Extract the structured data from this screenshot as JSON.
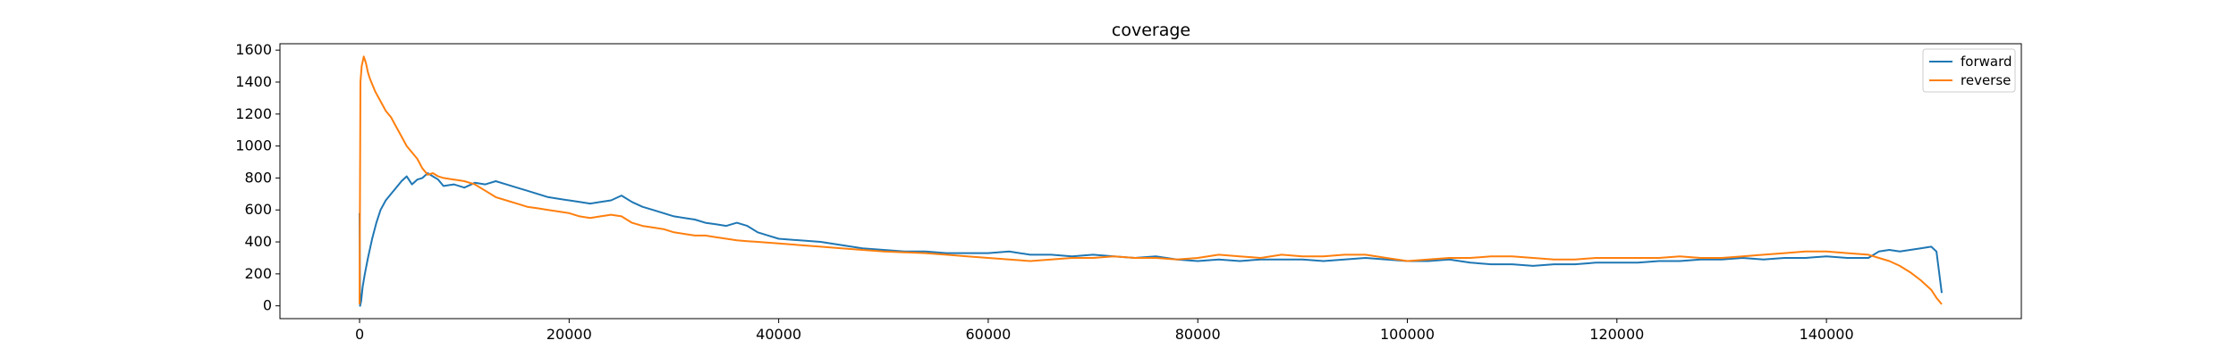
{
  "chart_data": {
    "type": "line",
    "title": "coverage",
    "xlabel": "",
    "ylabel": "",
    "xlim": [
      -7600,
      158600
    ],
    "ylim": [
      -80,
      1640
    ],
    "xticks": [
      0,
      20000,
      40000,
      60000,
      80000,
      100000,
      120000,
      140000
    ],
    "yticks": [
      0,
      200,
      400,
      600,
      800,
      1000,
      1200,
      1400,
      1600
    ],
    "grid": false,
    "legend_position": "top-right",
    "series": [
      {
        "name": "forward",
        "color": "#1f77b4",
        "x": [
          0,
          50,
          150,
          300,
          500,
          800,
          1200,
          1600,
          2000,
          2500,
          3000,
          3500,
          4000,
          4500,
          5000,
          5500,
          6000,
          6500,
          7000,
          7500,
          8000,
          9000,
          10000,
          11000,
          12000,
          13000,
          14000,
          15000,
          16000,
          17000,
          18000,
          19000,
          20000,
          21000,
          22000,
          23000,
          24000,
          25000,
          26000,
          27000,
          28000,
          29000,
          30000,
          31000,
          32000,
          33000,
          34000,
          35000,
          36000,
          37000,
          38000,
          39000,
          40000,
          42000,
          44000,
          46000,
          48000,
          50000,
          52000,
          54000,
          56000,
          58000,
          60000,
          62000,
          64000,
          66000,
          68000,
          70000,
          72000,
          74000,
          76000,
          78000,
          80000,
          82000,
          84000,
          86000,
          88000,
          90000,
          92000,
          94000,
          96000,
          98000,
          100000,
          102000,
          104000,
          106000,
          108000,
          110000,
          112000,
          114000,
          116000,
          118000,
          120000,
          122000,
          124000,
          126000,
          128000,
          130000,
          132000,
          134000,
          136000,
          138000,
          140000,
          142000,
          144000,
          145000,
          146000,
          147000,
          148000,
          149000,
          150000,
          150500,
          151000
        ],
        "y": [
          580,
          0,
          30,
          120,
          200,
          300,
          420,
          520,
          600,
          660,
          700,
          740,
          780,
          810,
          760,
          790,
          800,
          830,
          810,
          790,
          750,
          760,
          740,
          770,
          760,
          780,
          760,
          740,
          720,
          700,
          680,
          670,
          660,
          650,
          640,
          650,
          660,
          690,
          650,
          620,
          600,
          580,
          560,
          550,
          540,
          520,
          510,
          500,
          520,
          500,
          460,
          440,
          420,
          410,
          400,
          380,
          360,
          350,
          340,
          340,
          330,
          330,
          330,
          340,
          320,
          320,
          310,
          320,
          310,
          300,
          310,
          290,
          280,
          290,
          280,
          290,
          290,
          290,
          280,
          290,
          300,
          290,
          280,
          280,
          290,
          270,
          260,
          260,
          250,
          260,
          260,
          270,
          270,
          270,
          280,
          280,
          290,
          290,
          300,
          290,
          300,
          300,
          310,
          300,
          300,
          340,
          350,
          340,
          350,
          360,
          370,
          340,
          80
        ]
      },
      {
        "name": "reverse",
        "color": "#ff7f0e",
        "x": [
          0,
          80,
          200,
          400,
          600,
          800,
          1000,
          1500,
          2000,
          2500,
          3000,
          3500,
          4000,
          4500,
          5000,
          5500,
          6000,
          6500,
          7000,
          7500,
          8000,
          9000,
          10000,
          11000,
          12000,
          13000,
          14000,
          15000,
          16000,
          17000,
          18000,
          19000,
          20000,
          21000,
          22000,
          23000,
          24000,
          25000,
          26000,
          27000,
          28000,
          29000,
          30000,
          31000,
          32000,
          33000,
          34000,
          35000,
          36000,
          37000,
          38000,
          39000,
          40000,
          42000,
          44000,
          46000,
          48000,
          50000,
          52000,
          54000,
          56000,
          58000,
          60000,
          62000,
          64000,
          66000,
          68000,
          70000,
          72000,
          74000,
          76000,
          78000,
          80000,
          82000,
          84000,
          86000,
          88000,
          90000,
          92000,
          94000,
          96000,
          98000,
          100000,
          102000,
          104000,
          106000,
          108000,
          110000,
          112000,
          114000,
          116000,
          118000,
          120000,
          122000,
          124000,
          126000,
          128000,
          130000,
          132000,
          134000,
          136000,
          138000,
          140000,
          142000,
          144000,
          145000,
          146000,
          147000,
          148000,
          149000,
          150000,
          150500,
          151000
        ],
        "y": [
          10,
          1400,
          1500,
          1560,
          1520,
          1460,
          1420,
          1340,
          1280,
          1220,
          1180,
          1120,
          1060,
          1000,
          960,
          920,
          860,
          820,
          830,
          810,
          800,
          790,
          780,
          760,
          720,
          680,
          660,
          640,
          620,
          610,
          600,
          590,
          580,
          560,
          550,
          560,
          570,
          560,
          520,
          500,
          490,
          480,
          460,
          450,
          440,
          440,
          430,
          420,
          410,
          405,
          400,
          395,
          390,
          380,
          370,
          360,
          350,
          340,
          335,
          330,
          320,
          310,
          300,
          290,
          280,
          290,
          300,
          300,
          310,
          300,
          300,
          290,
          300,
          320,
          310,
          300,
          320,
          310,
          310,
          320,
          320,
          300,
          280,
          290,
          300,
          300,
          310,
          310,
          300,
          290,
          290,
          300,
          300,
          300,
          300,
          310,
          300,
          300,
          310,
          320,
          330,
          340,
          340,
          330,
          320,
          300,
          280,
          250,
          210,
          160,
          100,
          50,
          10
        ]
      }
    ]
  }
}
